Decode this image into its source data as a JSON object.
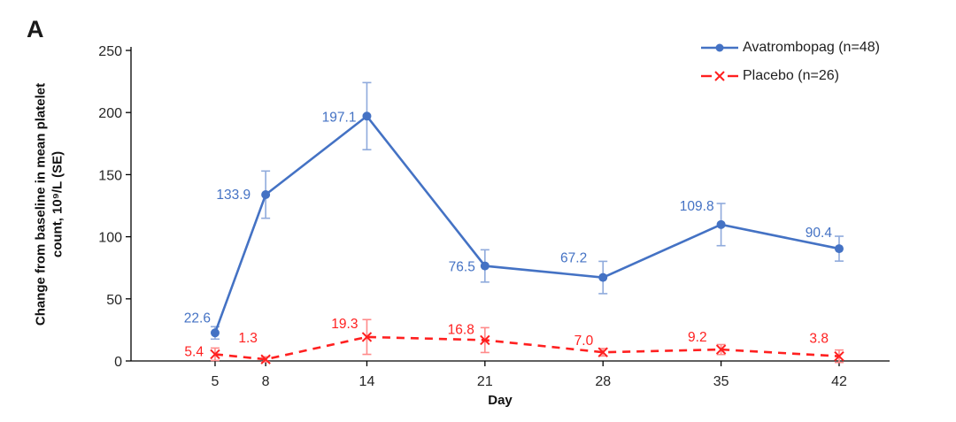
{
  "chart_data": {
    "type": "line",
    "panel_label": "A",
    "title": "",
    "xlabel": "Day",
    "ylabel": "Change from baseline in mean platelet\ncount, 10⁹/L (SE)",
    "x": [
      5,
      8,
      14,
      21,
      28,
      35,
      42
    ],
    "xlim": [
      0,
      45
    ],
    "ylim": [
      0,
      250
    ],
    "yticks": [
      0,
      50,
      100,
      150,
      200,
      250
    ],
    "grid": false,
    "legend_position": "top-right",
    "axis_color": "#000000",
    "tick_label_color": "#262626",
    "series": [
      {
        "name": "Avatrombopag (n=48)",
        "color": "#4472C4",
        "error_color": "#8FAADC",
        "marker": "circle",
        "line_style": "solid",
        "values": [
          22.6,
          133.9,
          197.1,
          76.5,
          67.2,
          109.8,
          90.4
        ],
        "labels": [
          "22.6",
          "133.9",
          "197.1",
          "76.5",
          "67.2",
          "109.8",
          "90.4"
        ],
        "se": [
          5,
          19,
          27,
          13,
          13,
          17,
          10
        ],
        "label_placements": [
          {
            "dx": -5,
            "dy": -12,
            "anchor": "end"
          },
          {
            "dx": -17,
            "dy": 5,
            "anchor": "end"
          },
          {
            "dx": -12,
            "dy": 6,
            "anchor": "end"
          },
          {
            "dx": -11,
            "dy": 6,
            "anchor": "end"
          },
          {
            "dx": -18,
            "dy": -17,
            "anchor": "end"
          },
          {
            "dx": -8,
            "dy": -16,
            "anchor": "end"
          },
          {
            "dx": -8,
            "dy": -13,
            "anchor": "end"
          }
        ]
      },
      {
        "name": "Placebo (n=26)",
        "color": "#FF2020",
        "error_color": "#FF8A8A",
        "marker": "x",
        "line_style": "dashed",
        "values": [
          5.4,
          1.3,
          19.3,
          16.8,
          7.0,
          9.2,
          3.8
        ],
        "labels": [
          "5.4",
          "1.3",
          "19.3",
          "16.8",
          "7.0",
          "9.2",
          "3.8"
        ],
        "se": [
          5,
          2,
          14,
          10,
          3,
          4,
          5
        ],
        "label_placements": [
          {
            "dx": -13,
            "dy": 2,
            "anchor": "end"
          },
          {
            "dx": -20,
            "dy": -19,
            "anchor": "middle"
          },
          {
            "dx": -10,
            "dy": -10,
            "anchor": "end"
          },
          {
            "dx": -12,
            "dy": -7,
            "anchor": "end"
          },
          {
            "dx": -11,
            "dy": -8,
            "anchor": "end"
          },
          {
            "dx": -16,
            "dy": -9,
            "anchor": "end"
          },
          {
            "dx": -12,
            "dy": -15,
            "anchor": "end"
          }
        ]
      }
    ]
  }
}
